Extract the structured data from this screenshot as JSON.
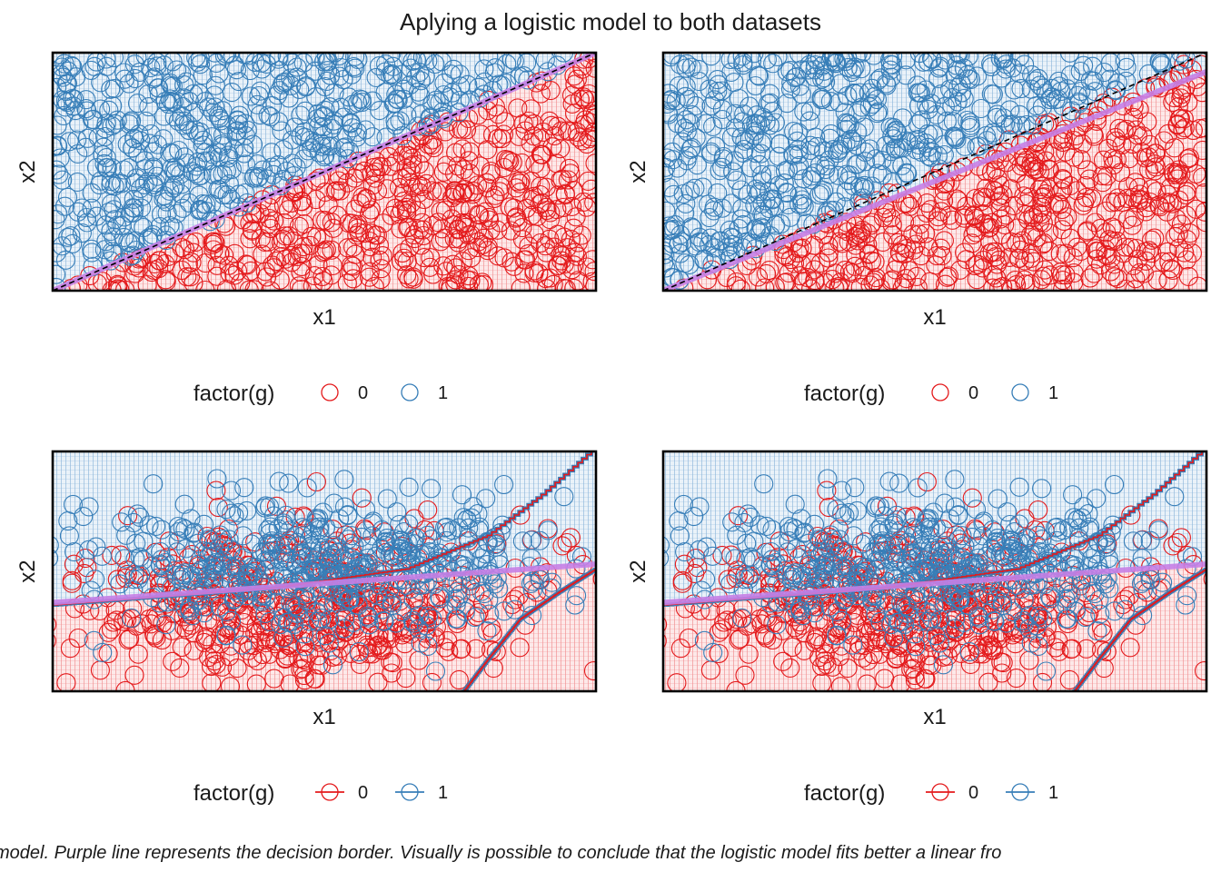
{
  "title": "Aplying a logistic model to both datasets",
  "caption": "model. Purple line represents the decision border. Visually is possible to conclude that the logistic model fits better a linear  fro",
  "colors": {
    "class0": "#e41a1c",
    "class1": "#377eb8",
    "fill0": "#f6c9ca",
    "fill1": "#cfe0ef",
    "border": "#6a3d9a",
    "boundary_line": "#c77fe6",
    "frame": "#000000"
  },
  "chart_data": [
    {
      "type": "scatter",
      "panel": "top-left",
      "xlabel": "x1",
      "ylabel": "x2",
      "xlim": [
        0,
        1
      ],
      "ylim": [
        0,
        1
      ],
      "x_ticks_shown": false,
      "y_ticks_shown": false,
      "grid": false,
      "legend": {
        "title": "factor(g)",
        "position": "bottom",
        "entries": [
          "0",
          "1"
        ],
        "key": "points"
      },
      "regions": "class 1 above the line, class 0 below",
      "true_boundary": {
        "style": "dashed",
        "color": "#000000",
        "from": [
          0,
          0
        ],
        "to": [
          1,
          1
        ]
      },
      "decision_border": {
        "color": "#c77fe6",
        "from": [
          0,
          0
        ],
        "to": [
          1,
          1
        ]
      },
      "series": [
        {
          "name": "0",
          "rule": "x2 < x1",
          "approx_points": 550
        },
        {
          "name": "1",
          "rule": "x2 > x1",
          "approx_points": 550
        }
      ]
    },
    {
      "type": "scatter",
      "panel": "top-right",
      "xlabel": "x1",
      "ylabel": "x2",
      "xlim": [
        0,
        1
      ],
      "ylim": [
        0,
        1
      ],
      "x_ticks_shown": false,
      "y_ticks_shown": false,
      "grid": false,
      "legend": {
        "title": "factor(g)",
        "position": "bottom",
        "entries": [
          "0",
          "1"
        ],
        "key": "points"
      },
      "regions": "class 1 above the line, class 0 below",
      "true_boundary": {
        "style": "dashed",
        "color": "#000000",
        "from": [
          0,
          0
        ],
        "to": [
          1,
          1
        ]
      },
      "decision_border": {
        "color": "#c77fe6",
        "from": [
          0,
          0
        ],
        "to": [
          1,
          0.92
        ]
      },
      "series": [
        {
          "name": "0",
          "rule": "x2 < x1",
          "approx_points": 550
        },
        {
          "name": "1",
          "rule": "x2 > x1",
          "approx_points": 550
        }
      ]
    },
    {
      "type": "scatter",
      "panel": "bottom-left",
      "xlabel": "x1",
      "ylabel": "x2",
      "xlim": [
        0,
        1
      ],
      "ylim": [
        0,
        1
      ],
      "x_ticks_shown": false,
      "y_ticks_shown": false,
      "grid": false,
      "legend": {
        "title": "factor(g)",
        "position": "bottom",
        "entries": [
          "0",
          "1"
        ],
        "key": "points-and-lines"
      },
      "regions": "class 1 above the line, class 0 below",
      "decision_border": {
        "color": "#c77fe6",
        "from": [
          0,
          0.37
        ],
        "to": [
          1,
          0.53
        ]
      },
      "step_boundary_lower": [
        [
          0,
          0.36
        ],
        [
          0.4,
          0.43
        ],
        [
          0.65,
          0.51
        ],
        [
          0.8,
          0.65
        ],
        [
          0.9,
          0.82
        ],
        [
          1,
          1.02
        ]
      ],
      "step_boundary_upper": [
        [
          0.75,
          -0.02
        ],
        [
          0.8,
          0.13
        ],
        [
          0.86,
          0.3
        ],
        [
          0.93,
          0.41
        ],
        [
          1,
          0.51
        ]
      ],
      "series": [
        {
          "name": "0",
          "center": [
            0.45,
            0.36
          ],
          "spread": [
            0.22,
            0.16
          ],
          "approx_points": 550
        },
        {
          "name": "1",
          "center": [
            0.5,
            0.52
          ],
          "spread": [
            0.22,
            0.15
          ],
          "approx_points": 550
        }
      ]
    },
    {
      "type": "scatter",
      "panel": "bottom-right",
      "xlabel": "x1",
      "ylabel": "x2",
      "xlim": [
        0,
        1
      ],
      "ylim": [
        0,
        1
      ],
      "x_ticks_shown": false,
      "y_ticks_shown": false,
      "grid": false,
      "legend": {
        "title": "factor(g)",
        "position": "bottom",
        "entries": [
          "0",
          "1"
        ],
        "key": "points-and-lines"
      },
      "regions": "class 1 above the line, class 0 below",
      "decision_border": {
        "color": "#c77fe6",
        "from": [
          0,
          0.37
        ],
        "to": [
          1,
          0.53
        ]
      },
      "step_boundary_lower": [
        [
          0,
          0.36
        ],
        [
          0.4,
          0.43
        ],
        [
          0.65,
          0.51
        ],
        [
          0.8,
          0.65
        ],
        [
          0.9,
          0.82
        ],
        [
          1,
          1.02
        ]
      ],
      "step_boundary_upper": [
        [
          0.75,
          -0.02
        ],
        [
          0.8,
          0.13
        ],
        [
          0.86,
          0.3
        ],
        [
          0.93,
          0.41
        ],
        [
          1,
          0.51
        ]
      ],
      "series": [
        {
          "name": "0",
          "center": [
            0.45,
            0.36
          ],
          "spread": [
            0.22,
            0.16
          ],
          "approx_points": 550
        },
        {
          "name": "1",
          "center": [
            0.5,
            0.52
          ],
          "spread": [
            0.22,
            0.15
          ],
          "approx_points": 550
        }
      ]
    }
  ]
}
